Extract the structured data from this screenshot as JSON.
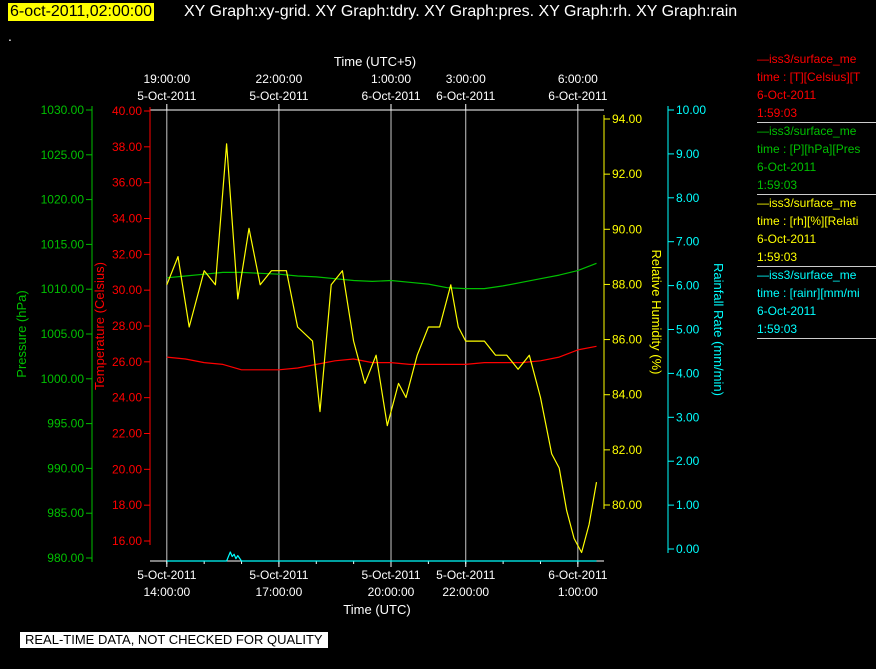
{
  "header": {
    "title": "6-oct-2011,02:00:00",
    "graphs": "XY Graph:xy-grid.  XY Graph:tdry.  XY Graph:pres.  XY Graph:rh.  XY Graph:rain",
    "dot": "."
  },
  "axes": {
    "top_title": "Time (UTC+5)",
    "bottom_title": "Time (UTC)",
    "top_ticks": [
      [
        "19:00:00",
        "5-Oct-2011"
      ],
      [
        "22:00:00",
        "5-Oct-2011"
      ],
      [
        "1:00:00",
        "6-Oct-2011"
      ],
      [
        "3:00:00",
        "6-Oct-2011"
      ],
      [
        "6:00:00",
        "6-Oct-2011"
      ]
    ],
    "bottom_ticks": [
      [
        "5-Oct-2011",
        "14:00:00"
      ],
      [
        "5-Oct-2011",
        "17:00:00"
      ],
      [
        "5-Oct-2011",
        "20:00:00"
      ],
      [
        "5-Oct-2011",
        "22:00:00"
      ],
      [
        "6-Oct-2011",
        "1:00:00"
      ]
    ],
    "pressure": {
      "label": "Pressure (hPa)",
      "color": "#00c000",
      "ticks": [
        "1030.00",
        "1025.00",
        "1020.00",
        "1015.00",
        "1010.00",
        "1005.00",
        "1000.00",
        "995.00",
        "990.00",
        "985.00",
        "980.00"
      ]
    },
    "temperature": {
      "label": "Temperature (Celsius)",
      "color": "#ff0000",
      "ticks": [
        "40.00",
        "38.00",
        "36.00",
        "34.00",
        "32.00",
        "30.00",
        "28.00",
        "26.00",
        "24.00",
        "22.00",
        "20.00",
        "18.00",
        "16.00"
      ]
    },
    "humidity": {
      "label": "Relative Humidity (%)",
      "color": "#ffff00",
      "ticks": [
        "94.00",
        "92.00",
        "90.00",
        "88.00",
        "86.00",
        "84.00",
        "82.00",
        "80.00"
      ]
    },
    "rain": {
      "label": "Rainfall Rate (mm/min)",
      "color": "#00ffff",
      "ticks": [
        "10.00",
        "9.00",
        "8.00",
        "7.00",
        "6.00",
        "5.00",
        "4.00",
        "3.00",
        "2.00",
        "1.00",
        "0.00"
      ]
    }
  },
  "legend": [
    {
      "color": "#ff0000",
      "lines": [
        "—iss3/surface_me",
        "time : [T][Celsius][T",
        "6-Oct-2011",
        "1:59:03"
      ]
    },
    {
      "color": "#00c000",
      "lines": [
        "—iss3/surface_me",
        "time : [P][hPa][Pres",
        "6-Oct-2011",
        "1:59:03"
      ]
    },
    {
      "color": "#ffff00",
      "lines": [
        "—iss3/surface_me",
        "time : [rh][%][Relati",
        "6-Oct-2011",
        "1:59:03"
      ]
    },
    {
      "color": "#00ffff",
      "lines": [
        "—iss3/surface_me",
        "time : [rainr][mm/mi",
        "6-Oct-2011",
        "1:59:03"
      ]
    }
  ],
  "quality_banner": "REAL-TIME DATA, NOT CHECKED FOR QUALITY",
  "chart_data": {
    "type": "line",
    "x_unit": "hours since 5-Oct-2011 14:00 UTC",
    "xlim": [
      -0.45,
      11.7
    ],
    "series": [
      {
        "name": "iss3/surface_met T (Celsius)",
        "axis": "temperature",
        "ylim": [
          15,
          40
        ],
        "color": "#ff0000",
        "x": [
          0,
          0.5,
          1,
          1.5,
          2,
          2.5,
          3,
          3.5,
          4,
          4.5,
          5,
          5.5,
          6,
          6.5,
          7,
          7.5,
          8,
          8.5,
          9,
          9.5,
          10,
          10.5,
          11,
          11.5
        ],
        "y": [
          26.3,
          26.2,
          26.0,
          25.9,
          25.6,
          25.6,
          25.6,
          25.7,
          25.9,
          26.1,
          26.2,
          26.0,
          26.0,
          25.9,
          25.9,
          25.9,
          25.9,
          26.0,
          26.0,
          26.0,
          26.1,
          26.3,
          26.7,
          26.9
        ]
      },
      {
        "name": "iss3/surface_met P (hPa)",
        "axis": "pressure",
        "ylim": [
          980,
          1030
        ],
        "color": "#00c000",
        "x": [
          0,
          0.5,
          1,
          1.5,
          2,
          2.5,
          3,
          3.5,
          4,
          4.5,
          5,
          5.5,
          6,
          6.5,
          7,
          7.5,
          8,
          8.5,
          9,
          9.5,
          10,
          10.5,
          11,
          11.5
        ],
        "y": [
          1011.4,
          1011.6,
          1011.8,
          1012.0,
          1012.0,
          1011.9,
          1011.8,
          1011.6,
          1011.5,
          1011.3,
          1011.1,
          1011.0,
          1011.1,
          1010.9,
          1010.7,
          1010.3,
          1010.2,
          1010.2,
          1010.5,
          1010.9,
          1011.3,
          1011.7,
          1012.2,
          1013.0
        ]
      },
      {
        "name": "iss3/surface_met rh (%)",
        "axis": "humidity",
        "ylim": [
          78.7,
          94.7
        ],
        "color": "#ffff00",
        "x": [
          0,
          0.3,
          0.6,
          1.0,
          1.3,
          1.6,
          1.9,
          2.2,
          2.5,
          2.8,
          3.2,
          3.5,
          3.9,
          4.1,
          4.4,
          4.7,
          5.0,
          5.3,
          5.6,
          5.9,
          6.2,
          6.4,
          6.7,
          7.0,
          7.3,
          7.6,
          7.8,
          8.0,
          8.2,
          8.5,
          8.8,
          9.1,
          9.4,
          9.7,
          10.0,
          10.3,
          10.5,
          10.7,
          10.9,
          11.1,
          11.3,
          11.5
        ],
        "y": [
          88.5,
          89.5,
          87.0,
          89.0,
          88.5,
          93.5,
          88.0,
          90.5,
          88.5,
          89.0,
          89.0,
          87.0,
          86.5,
          84.0,
          88.5,
          89.0,
          86.5,
          85.0,
          86.0,
          83.5,
          85.0,
          84.5,
          86.0,
          87.0,
          87.0,
          88.5,
          87.0,
          86.5,
          86.5,
          86.5,
          86.0,
          86.0,
          85.5,
          86.0,
          84.5,
          82.5,
          82.0,
          80.5,
          79.5,
          79.0,
          80.0,
          81.5
        ]
      },
      {
        "name": "iss3/surface_met rainr (mm/min)",
        "axis": "rain",
        "ylim": [
          0,
          10
        ],
        "color": "#00ffff",
        "x": [
          0,
          1.6,
          1.7,
          1.75,
          1.8,
          1.85,
          1.9,
          2.0,
          11.5
        ],
        "y": [
          0.0,
          0.0,
          0.2,
          0.1,
          0.15,
          0.05,
          0.12,
          0.0,
          0.0
        ]
      }
    ]
  }
}
